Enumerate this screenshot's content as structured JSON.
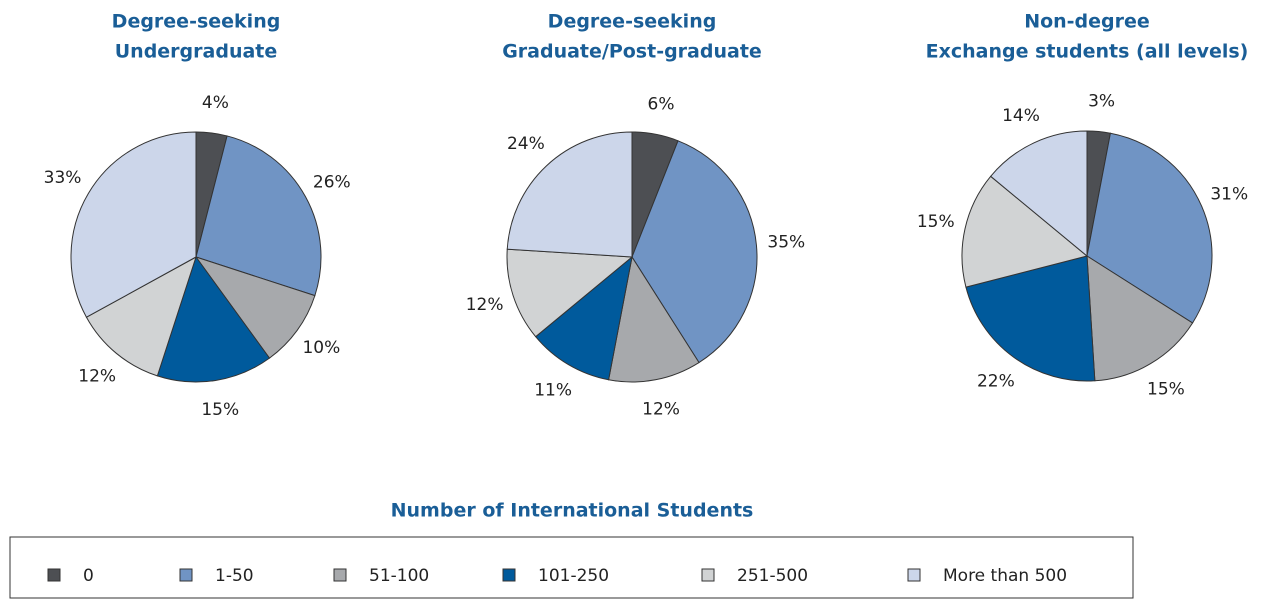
{
  "chart_data": [
    {
      "type": "pie",
      "title": [
        "Degree-seeking",
        "Undergraduate"
      ],
      "categories": [
        "0",
        "1-50",
        "51-100",
        "101-250",
        "251-500",
        "More than 500"
      ],
      "values": [
        4,
        26,
        10,
        15,
        12,
        33
      ],
      "value_labels": [
        "4%",
        "26%",
        "10%",
        "15%",
        "12%",
        "33%"
      ],
      "colors": [
        "#4d4f53",
        "#7094c4",
        "#a7a9ac",
        "#005a9c",
        "#d1d3d4",
        "#ccd6ea"
      ]
    },
    {
      "type": "pie",
      "title": [
        "Degree-seeking",
        "Graduate/Post-graduate"
      ],
      "categories": [
        "0",
        "1-50",
        "51-100",
        "101-250",
        "251-500",
        "More than 500"
      ],
      "values": [
        6,
        35,
        12,
        11,
        12,
        24
      ],
      "value_labels": [
        "6%",
        "35%",
        "12%",
        "11%",
        "12%",
        "24%"
      ],
      "colors": [
        "#4d4f53",
        "#7094c4",
        "#a7a9ac",
        "#005a9c",
        "#d1d3d4",
        "#ccd6ea"
      ]
    },
    {
      "type": "pie",
      "title": [
        "Non-degree",
        "Exchange students (all levels)"
      ],
      "categories": [
        "0",
        "1-50",
        "51-100",
        "101-250",
        "251-500",
        "More than 500"
      ],
      "values": [
        3,
        31,
        15,
        22,
        15,
        14
      ],
      "value_labels": [
        "3%",
        "31%",
        "15%",
        "22%",
        "15%",
        "14%"
      ],
      "colors": [
        "#4d4f53",
        "#7094c4",
        "#a7a9ac",
        "#005a9c",
        "#d1d3d4",
        "#ccd6ea"
      ]
    }
  ],
  "legend": {
    "title": "Number of International Students"
  }
}
